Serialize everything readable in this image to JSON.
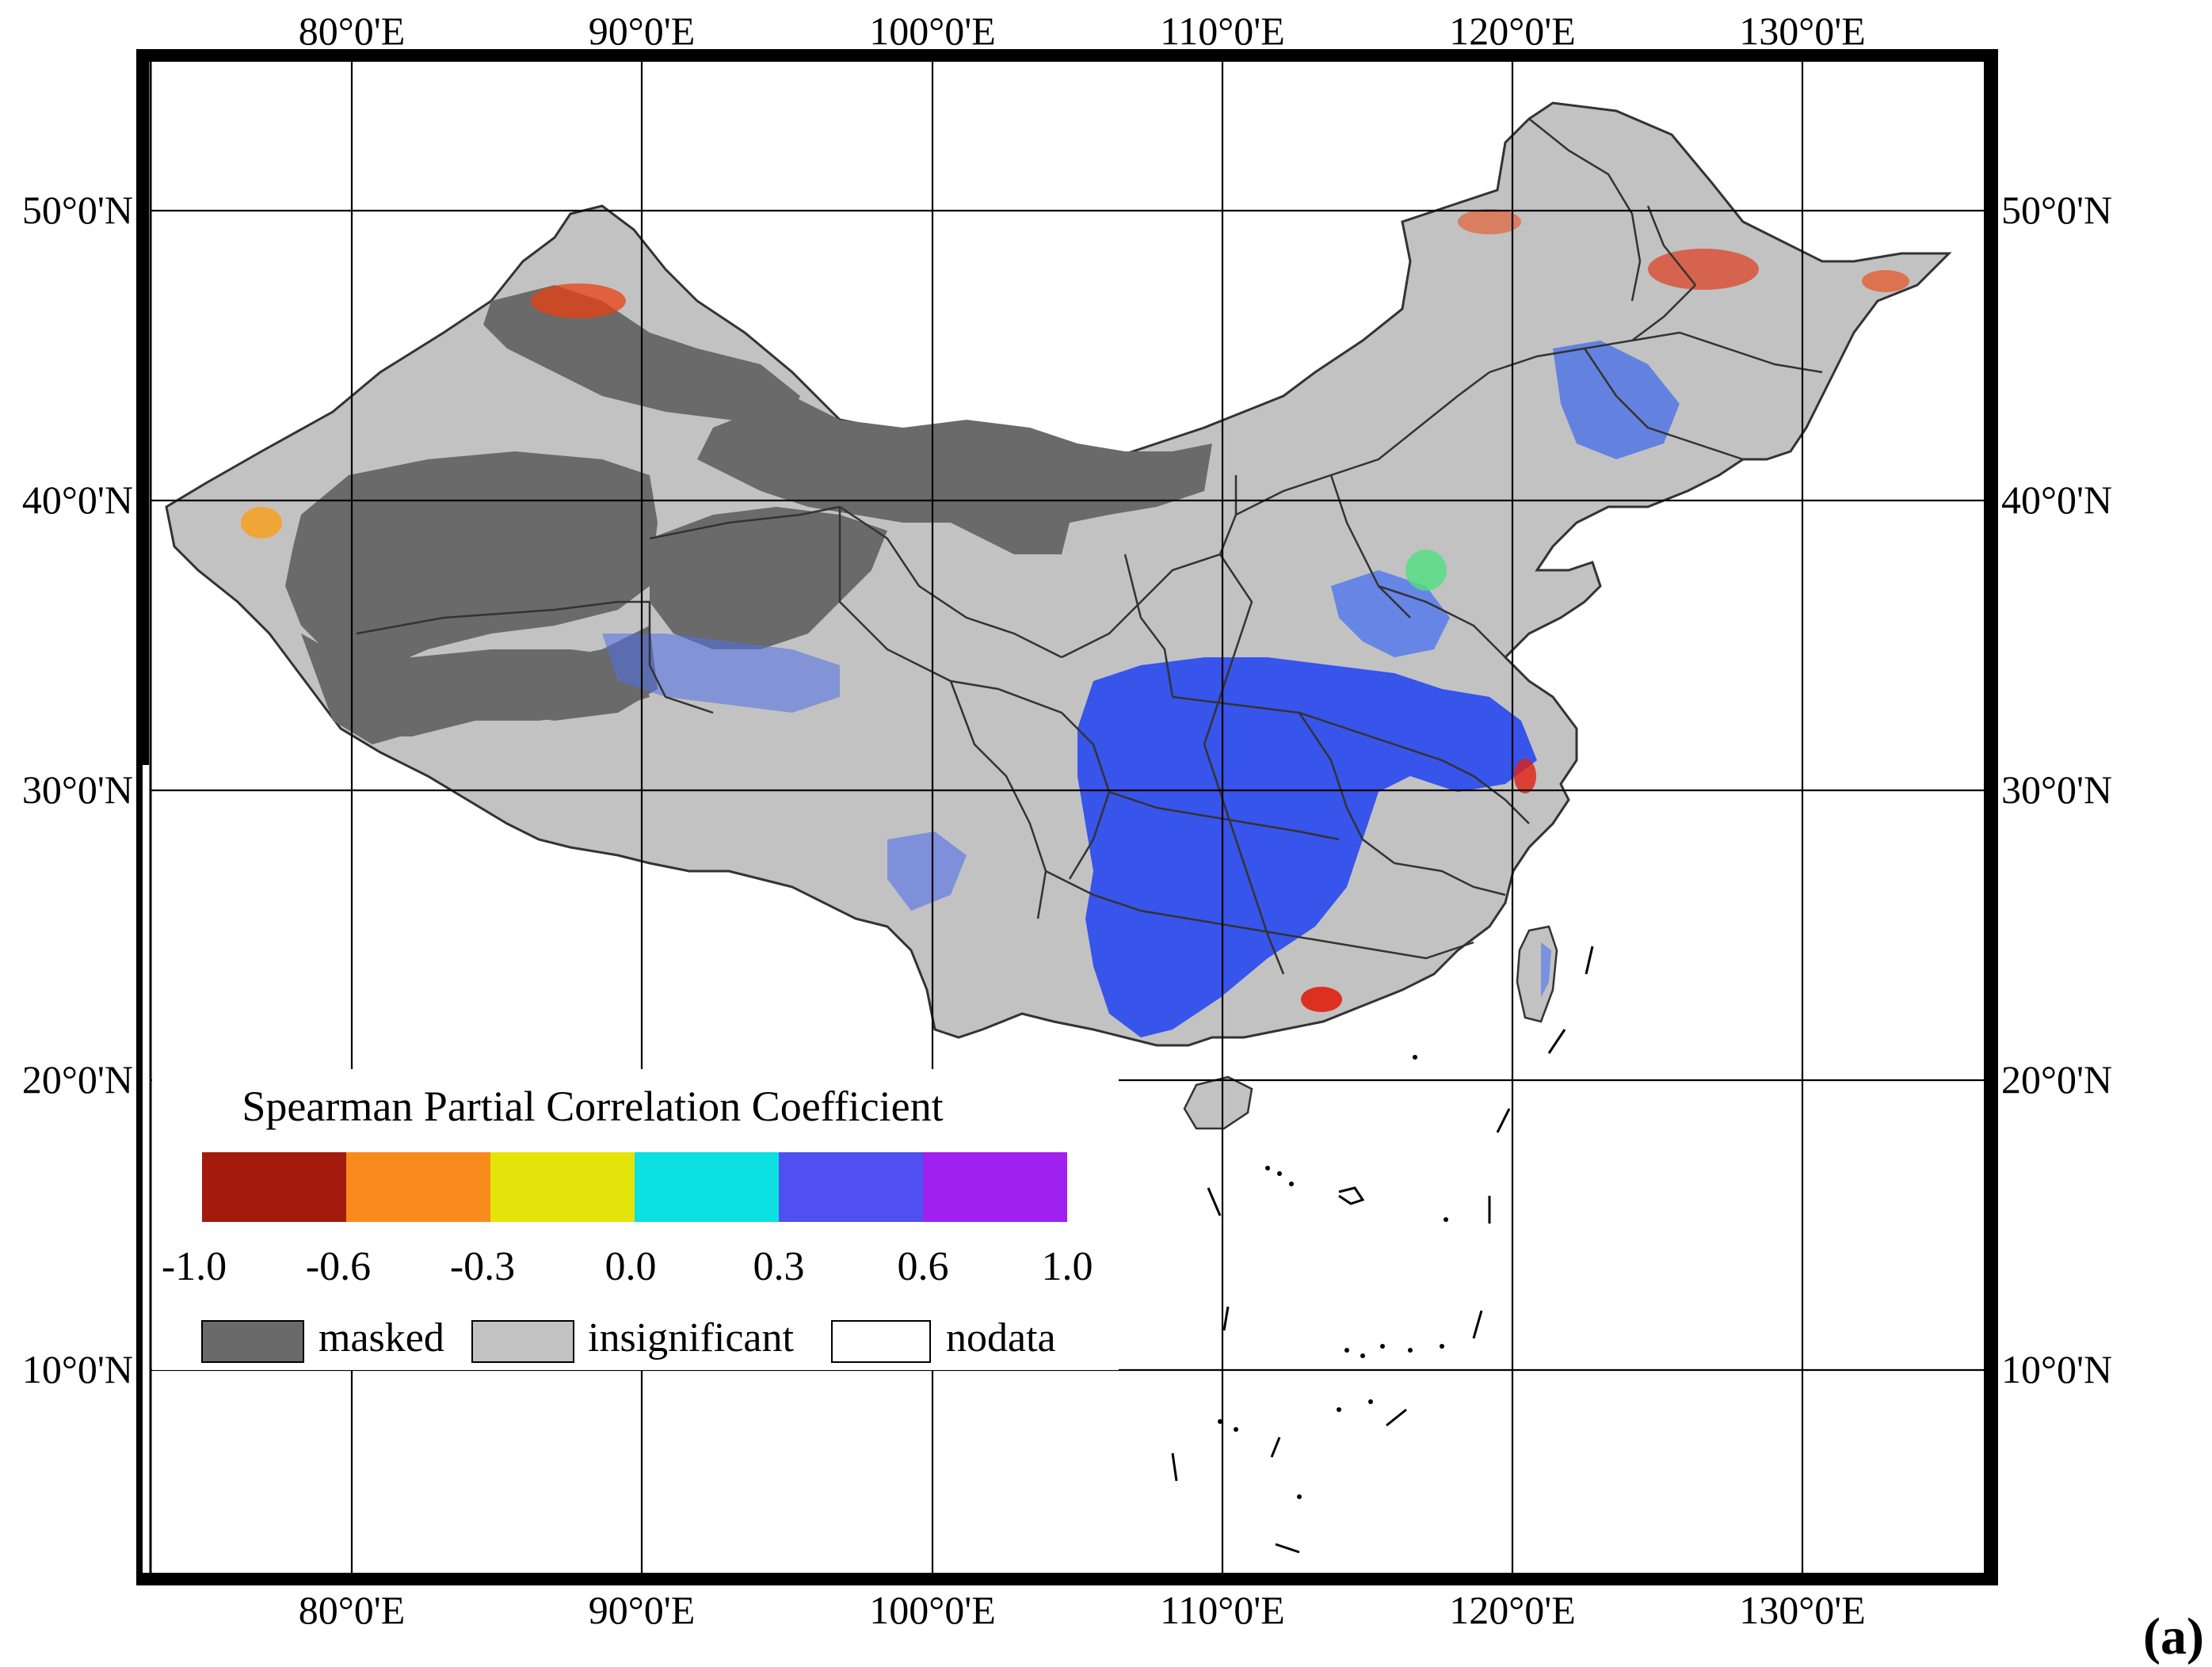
{
  "map": {
    "panel_label": "(a)",
    "colors": {
      "masked": "#6a6a6a",
      "insignificant": "#c2c2c2",
      "nodata": "#ffffff",
      "outline": "#333333"
    },
    "axes": {
      "lon_labels": [
        "80°0'E",
        "90°0'E",
        "100°0'E",
        "110°0'E",
        "120°0'E",
        "130°0'E"
      ],
      "lat_labels": [
        "50°0'N",
        "40°0'N",
        "30°0'N",
        "20°0'N",
        "10°0'N"
      ]
    }
  },
  "legend": {
    "title": "Spearman Partial Correlation Coefficient",
    "color_classes": [
      {
        "color": "#a41a0c"
      },
      {
        "color": "#f98a1c"
      },
      {
        "color": "#e4e40a"
      },
      {
        "color": "#0ce0e0"
      },
      {
        "color": "#5050f0"
      },
      {
        "color": "#a020f0"
      }
    ],
    "breaks": [
      "-1.0",
      "-0.6",
      "-0.3",
      "0.0",
      "0.3",
      "0.6",
      "1.0"
    ],
    "categories": [
      {
        "label": "masked",
        "color": "#6a6a6a"
      },
      {
        "label": "insignificant",
        "color": "#c2c2c2"
      },
      {
        "label": "nodata",
        "color": "#ffffff"
      }
    ]
  }
}
